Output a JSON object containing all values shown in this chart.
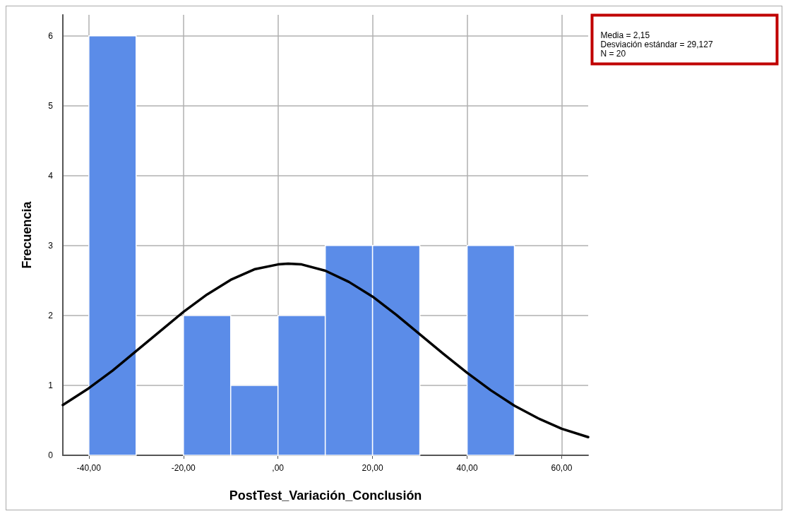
{
  "chart_data": {
    "type": "histogram",
    "xlabel": "PostTest_Variación_Conclusión",
    "ylabel": "Frecuencia",
    "annotations": [
      "Media = 2,15",
      "Desviación estándar = 29,127",
      "N = 20"
    ],
    "bins": [
      -40,
      -30,
      -20,
      -10,
      0,
      10,
      20,
      30,
      40,
      50
    ],
    "series": [
      {
        "color": "#5b8ce8",
        "values": [
          6,
          0,
          2,
          1,
          2,
          3,
          3,
          0,
          3
        ]
      },
      {
        "type": "line",
        "color": "#000000",
        "x": [
          -45.5,
          -40,
          -35,
          -30,
          -25,
          -20,
          -15,
          -10,
          -5,
          0,
          2.15,
          5,
          10,
          15,
          20,
          25,
          30,
          35,
          40,
          45,
          50,
          55,
          60,
          65.6
        ],
        "values": [
          0.72,
          0.96,
          1.21,
          1.49,
          1.77,
          2.05,
          2.3,
          2.51,
          2.66,
          2.73,
          2.74,
          2.73,
          2.64,
          2.48,
          2.27,
          2.01,
          1.73,
          1.45,
          1.18,
          0.93,
          0.71,
          0.53,
          0.38,
          0.26
        ]
      }
    ],
    "xlim": [
      -45.5,
      65.6
    ],
    "ylim": [
      0,
      6.3
    ],
    "xticks": [
      {
        "value": -40,
        "label": "-40,00"
      },
      {
        "value": -20,
        "label": "-20,00"
      },
      {
        "value": 0,
        "label": ",00"
      },
      {
        "value": 20,
        "label": "20,00"
      },
      {
        "value": 40,
        "label": "40,00"
      },
      {
        "value": 60,
        "label": "60,00"
      }
    ],
    "yticks": [
      0,
      1,
      2,
      3,
      4,
      5,
      6
    ],
    "grid": true,
    "marker": "none",
    "line_style": "solid"
  }
}
